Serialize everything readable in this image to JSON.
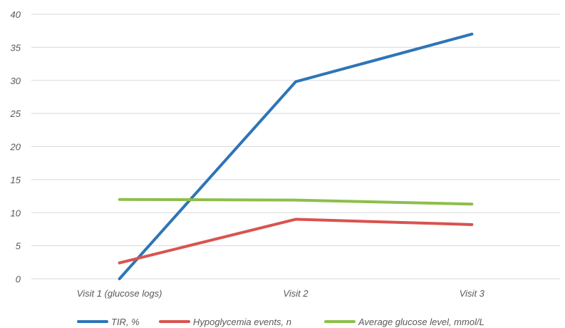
{
  "chart_data": {
    "type": "line",
    "categories": [
      "Visit 1 (glucose logs)",
      "Visit 2",
      "Visit 3"
    ],
    "ylim": [
      0,
      40
    ],
    "yticks": [
      0,
      5,
      10,
      15,
      20,
      25,
      30,
      35,
      40
    ],
    "grid": true,
    "legend_position": "bottom",
    "series": [
      {
        "name": "TIR, %",
        "color": "#2E75B6",
        "values": [
          0,
          29.8,
          37
        ]
      },
      {
        "name": "Hypoglycemia events, n",
        "color": "#D9534F",
        "values": [
          2.4,
          9.0,
          8.2
        ]
      },
      {
        "name": "Average glucose level, mmol/L",
        "color": "#8CBF4A",
        "values": [
          12.0,
          11.9,
          11.3
        ]
      }
    ]
  }
}
